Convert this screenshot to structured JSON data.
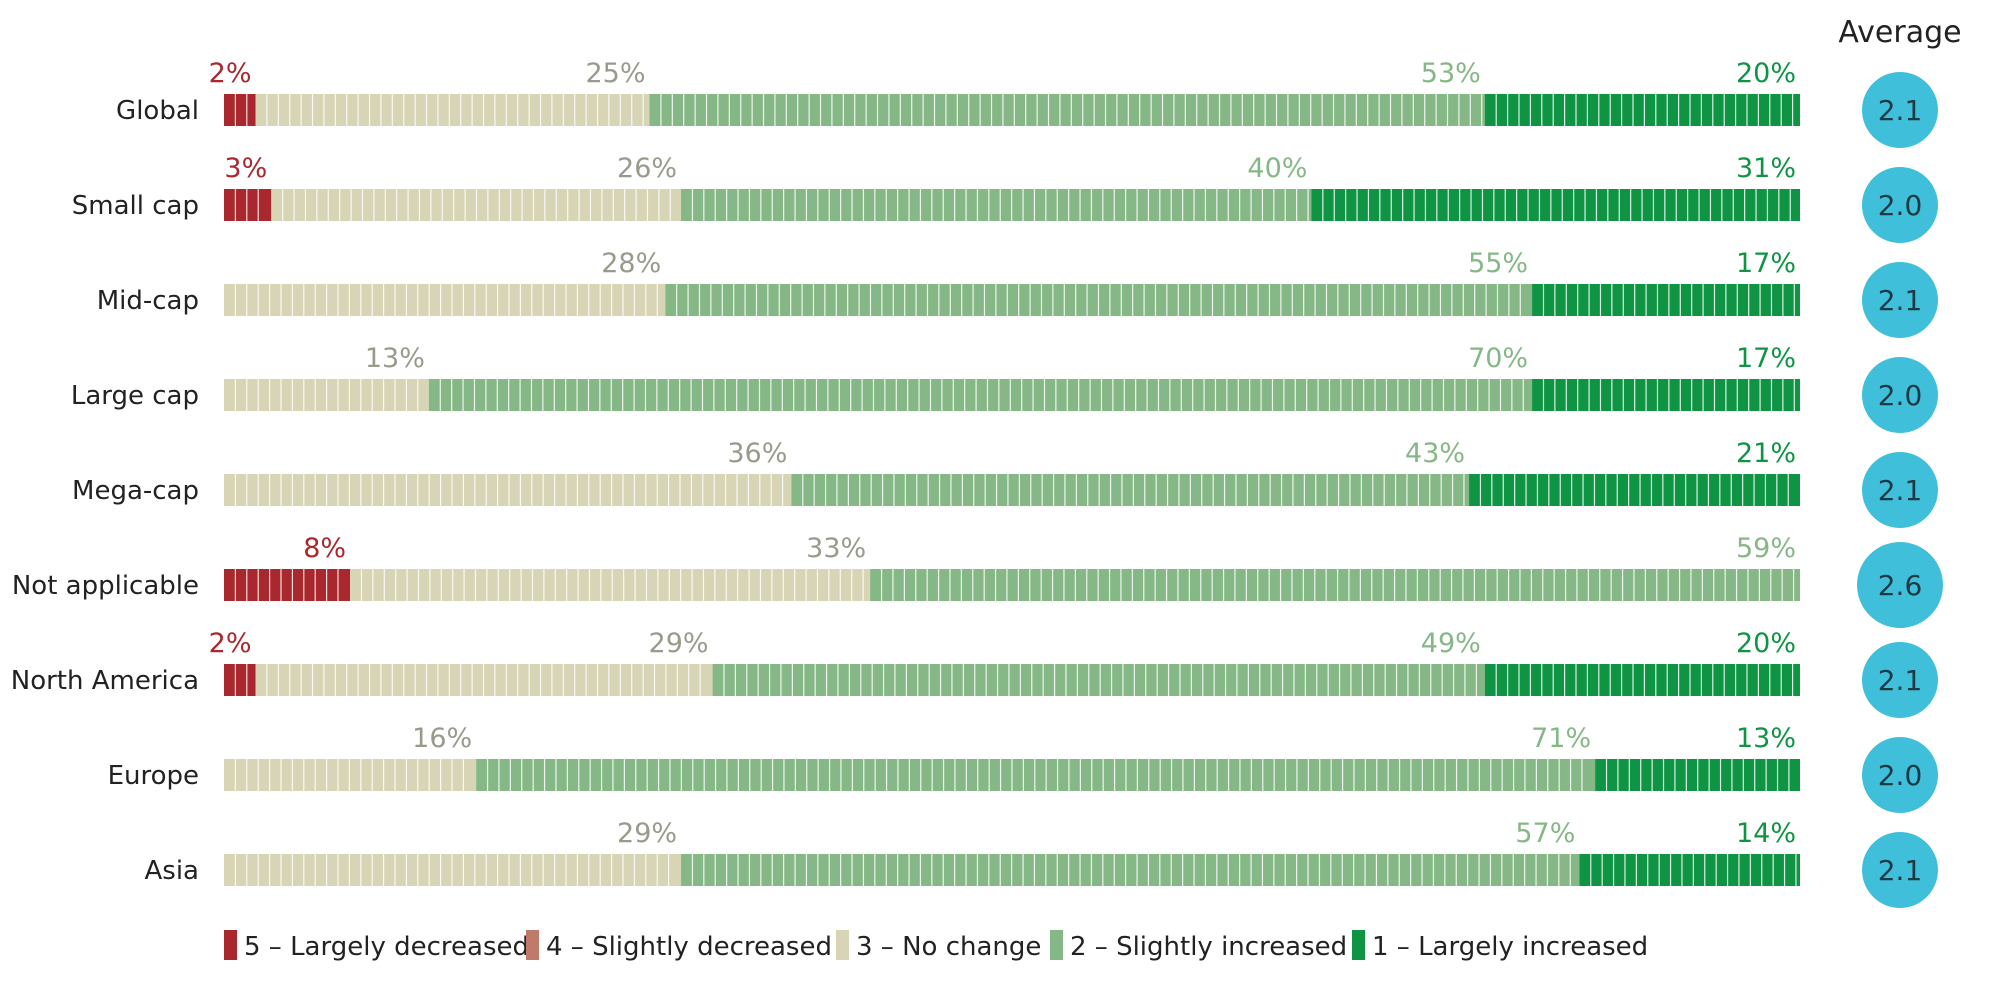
{
  "chart_data": {
    "type": "bar",
    "orientation": "horizontal",
    "stacked": true,
    "xlim": [
      0,
      100
    ],
    "grid": false,
    "legend_position": "bottom-left",
    "average_header": "Average",
    "categories": [
      "Global",
      "Small cap",
      "Mid-cap",
      "Large cap",
      "Mega-cap",
      "Not applicable",
      "North America",
      "Europe",
      "Asia"
    ],
    "series": [
      {
        "name": "5 – Largely decreased",
        "color": "#a8282e",
        "values": [
          2,
          3,
          0,
          0,
          0,
          8,
          2,
          0,
          0
        ]
      },
      {
        "name": "4 – Slightly decreased",
        "color": "#c07a6a",
        "values": [
          0,
          0,
          0,
          0,
          0,
          0,
          0,
          0,
          0
        ]
      },
      {
        "name": "3 – No change",
        "color": "#d8d4b6",
        "values": [
          25,
          26,
          28,
          13,
          36,
          33,
          29,
          16,
          29
        ]
      },
      {
        "name": "2 – Slightly increased",
        "color": "#85b886",
        "values": [
          53,
          40,
          55,
          70,
          43,
          59,
          49,
          71,
          57
        ]
      },
      {
        "name": "1 – Largely increased",
        "color": "#0f9444",
        "values": [
          20,
          31,
          17,
          17,
          21,
          0,
          20,
          13,
          14
        ]
      }
    ],
    "data_labels": [
      {
        "labels": [
          "2%",
          "",
          "25%",
          "53%",
          "20%"
        ]
      },
      {
        "labels": [
          "3%",
          "",
          "26%",
          "40%",
          "31%"
        ]
      },
      {
        "labels": [
          "",
          "",
          "28%",
          "55%",
          "17%"
        ]
      },
      {
        "labels": [
          "",
          "",
          "13%",
          "70%",
          "17%"
        ]
      },
      {
        "labels": [
          "",
          "",
          "36%",
          "43%",
          "21%"
        ]
      },
      {
        "labels": [
          "8%",
          "",
          "33%",
          "59%",
          ""
        ]
      },
      {
        "labels": [
          "2%",
          "",
          "29%",
          "49%",
          "20%"
        ]
      },
      {
        "labels": [
          "",
          "",
          "16%",
          "71%",
          "13%"
        ]
      },
      {
        "labels": [
          "",
          "",
          "29%",
          "57%",
          "14%"
        ]
      }
    ],
    "label_colors": [
      "#a8282e",
      "#c07a6a",
      "#9a9a8c",
      "#85b886",
      "#0f9444"
    ],
    "averages": [
      "2.1",
      "2.0",
      "2.1",
      "2.0",
      "2.1",
      "2.6",
      "2.1",
      "2.0",
      "2.1"
    ],
    "average_color": "#3fbfda"
  }
}
